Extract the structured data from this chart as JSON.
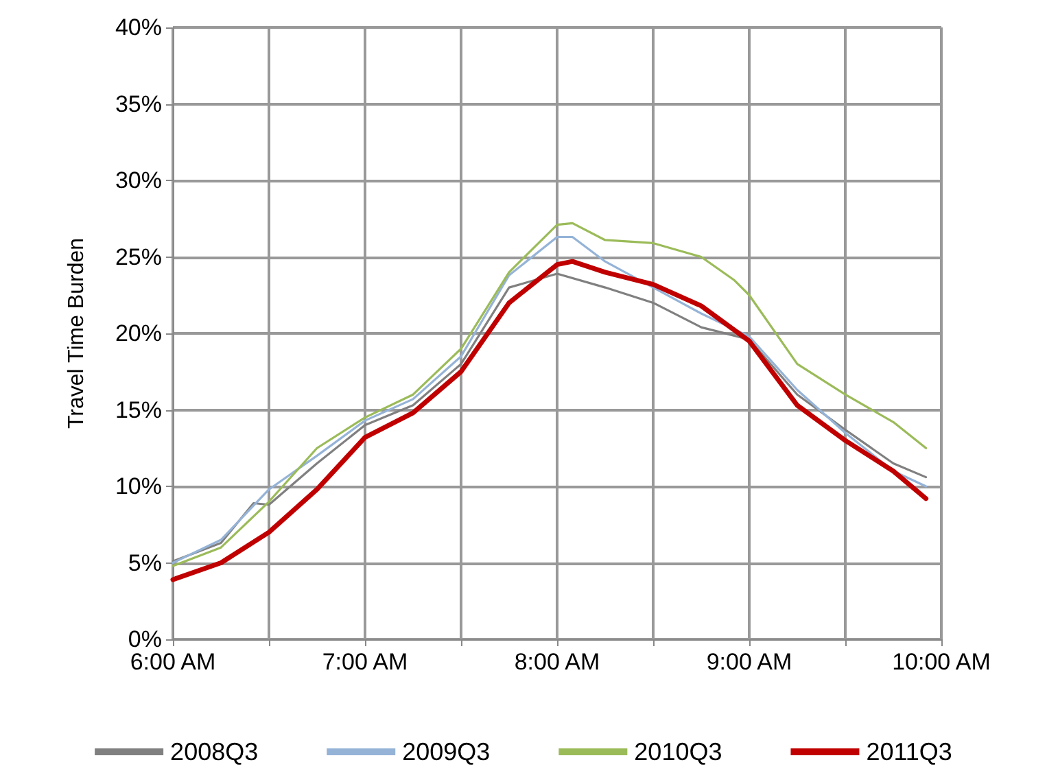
{
  "chart_data": {
    "type": "line",
    "ylabel": "Travel Time Burden",
    "xlim": [
      6,
      10
    ],
    "xticks": [
      {
        "value": 6,
        "label": "6:00 AM"
      },
      {
        "value": 6.5,
        "label": null
      },
      {
        "value": 7,
        "label": "7:00 AM"
      },
      {
        "value": 7.5,
        "label": null
      },
      {
        "value": 8,
        "label": "8:00 AM"
      },
      {
        "value": 8.5,
        "label": null
      },
      {
        "value": 9,
        "label": "9:00 AM"
      },
      {
        "value": 9.5,
        "label": null
      },
      {
        "value": 10,
        "label": "10:00 AM"
      }
    ],
    "ylim": [
      0,
      40
    ],
    "yticks": [
      {
        "value": 0,
        "label": "0%"
      },
      {
        "value": 5,
        "label": "5%"
      },
      {
        "value": 10,
        "label": "10%"
      },
      {
        "value": 15,
        "label": "15%"
      },
      {
        "value": 20,
        "label": "20%"
      },
      {
        "value": 25,
        "label": "25%"
      },
      {
        "value": 30,
        "label": "30%"
      },
      {
        "value": 35,
        "label": "35%"
      },
      {
        "value": 40,
        "label": "40%"
      }
    ],
    "grid": true,
    "legend": "bottom",
    "marker": "none",
    "line_style": "solid",
    "series": [
      {
        "name": "2008Q3",
        "color": "#808080",
        "x": [
          6,
          6.25,
          6.42,
          6.5,
          6.75,
          7,
          7.25,
          7.5,
          7.75,
          8,
          8.25,
          8.5,
          8.75,
          9,
          9.25,
          9.5,
          9.75,
          9.92
        ],
        "values": [
          5.1,
          6.3,
          8.9,
          8.8,
          11.5,
          14.0,
          15.3,
          18.0,
          23.0,
          23.9,
          23.0,
          22.0,
          20.4,
          19.6,
          16.0,
          13.7,
          11.5,
          10.6
        ]
      },
      {
        "name": "2009Q3",
        "color": "#95b3d7",
        "x": [
          6,
          6.25,
          6.5,
          6.75,
          7,
          7.25,
          7.5,
          7.75,
          8,
          8.08,
          8.25,
          8.5,
          8.75,
          9,
          9.25,
          9.5,
          9.75,
          9.92
        ],
        "values": [
          5.0,
          6.5,
          9.8,
          12.0,
          14.3,
          15.7,
          18.5,
          23.8,
          26.3,
          26.3,
          24.7,
          23.0,
          21.3,
          19.8,
          16.3,
          13.5,
          11.0,
          10.0
        ]
      },
      {
        "name": "2010Q3",
        "color": "#9bbb59",
        "x": [
          6,
          6.25,
          6.5,
          6.75,
          7,
          7.25,
          7.5,
          7.75,
          8,
          8.08,
          8.25,
          8.5,
          8.75,
          8.92,
          9,
          9.25,
          9.5,
          9.75,
          9.92
        ],
        "values": [
          4.8,
          6.0,
          9.0,
          12.5,
          14.5,
          16.0,
          19.0,
          24.0,
          27.1,
          27.2,
          26.1,
          25.9,
          25.0,
          23.5,
          22.5,
          18.0,
          16.0,
          14.2,
          12.5
        ]
      },
      {
        "name": "2011Q3",
        "color": "#c00000",
        "x": [
          6,
          6.25,
          6.5,
          6.75,
          7,
          7.25,
          7.5,
          7.75,
          8,
          8.08,
          8.25,
          8.5,
          8.75,
          9,
          9.25,
          9.5,
          9.75,
          9.92
        ],
        "values": [
          3.9,
          5.0,
          7.0,
          9.8,
          13.2,
          14.8,
          17.5,
          22.0,
          24.5,
          24.7,
          24.0,
          23.2,
          21.8,
          19.5,
          15.3,
          13.0,
          11.0,
          9.2
        ]
      }
    ]
  }
}
